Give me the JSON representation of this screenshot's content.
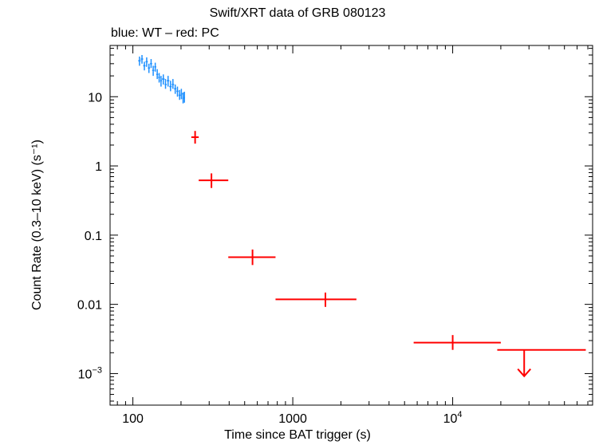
{
  "chart_data": {
    "type": "scatter",
    "title": "Swift/XRT data of GRB 080123",
    "subtitle": "blue: WT – red: PC",
    "xlabel": "Time since BAT trigger (s)",
    "ylabel": "Count Rate (0.3–10 keV) (s⁻¹)",
    "x_scale": "log",
    "y_scale": "log",
    "xlim": [
      72,
      75000
    ],
    "ylim": [
      0.00035,
      55
    ],
    "x_ticks": [
      {
        "value": 100,
        "label": "100",
        "base": "100",
        "sup": ""
      },
      {
        "value": 1000,
        "label": "1000",
        "base": "1000",
        "sup": ""
      },
      {
        "value": 10000,
        "label": "10^4",
        "base": "10",
        "sup": "4"
      }
    ],
    "y_ticks": [
      {
        "value": 10,
        "label": "10",
        "base": "10",
        "sup": ""
      },
      {
        "value": 1,
        "label": "1",
        "base": "1",
        "sup": ""
      },
      {
        "value": 0.1,
        "label": "0.1",
        "base": "0.1",
        "sup": ""
      },
      {
        "value": 0.01,
        "label": "0.01",
        "base": "0.01",
        "sup": ""
      },
      {
        "value": 0.001,
        "label": "10^-3",
        "base": "10",
        "sup": "−3"
      }
    ],
    "series": [
      {
        "name": "WT",
        "color": "#1e90ff",
        "points": [
          {
            "x": 110,
            "x_lo": 108,
            "x_hi": 112,
            "y": 33,
            "y_lo": 28,
            "y_hi": 38
          },
          {
            "x": 114,
            "x_lo": 112,
            "x_hi": 116,
            "y": 35,
            "y_lo": 30,
            "y_hi": 40
          },
          {
            "x": 118,
            "x_lo": 116,
            "x_hi": 120,
            "y": 28,
            "y_lo": 24,
            "y_hi": 32
          },
          {
            "x": 122,
            "x_lo": 120,
            "x_hi": 124,
            "y": 32,
            "y_lo": 27,
            "y_hi": 37
          },
          {
            "x": 126,
            "x_lo": 124,
            "x_hi": 128,
            "y": 26,
            "y_lo": 22,
            "y_hi": 30
          },
          {
            "x": 130,
            "x_lo": 128,
            "x_hi": 132,
            "y": 30,
            "y_lo": 26,
            "y_hi": 35
          },
          {
            "x": 134,
            "x_lo": 132,
            "x_hi": 136,
            "y": 24,
            "y_lo": 20,
            "y_hi": 28
          },
          {
            "x": 138,
            "x_lo": 136,
            "x_hi": 140,
            "y": 27,
            "y_lo": 23,
            "y_hi": 31
          },
          {
            "x": 142,
            "x_lo": 140,
            "x_hi": 144,
            "y": 21,
            "y_lo": 18,
            "y_hi": 25
          },
          {
            "x": 146,
            "x_lo": 144,
            "x_hi": 148,
            "y": 19,
            "y_lo": 16,
            "y_hi": 22
          },
          {
            "x": 150,
            "x_lo": 148,
            "x_hi": 152,
            "y": 17,
            "y_lo": 14,
            "y_hi": 20
          },
          {
            "x": 155,
            "x_lo": 152,
            "x_hi": 158,
            "y": 18,
            "y_lo": 15,
            "y_hi": 21
          },
          {
            "x": 160,
            "x_lo": 158,
            "x_hi": 163,
            "y": 15,
            "y_lo": 13,
            "y_hi": 18
          },
          {
            "x": 166,
            "x_lo": 163,
            "x_hi": 169,
            "y": 17,
            "y_lo": 14,
            "y_hi": 20
          },
          {
            "x": 172,
            "x_lo": 169,
            "x_hi": 175,
            "y": 14,
            "y_lo": 12,
            "y_hi": 17
          },
          {
            "x": 178,
            "x_lo": 175,
            "x_hi": 181,
            "y": 15,
            "y_lo": 13,
            "y_hi": 18
          },
          {
            "x": 184,
            "x_lo": 181,
            "x_hi": 187,
            "y": 13,
            "y_lo": 11,
            "y_hi": 15
          },
          {
            "x": 190,
            "x_lo": 187,
            "x_hi": 193,
            "y": 12,
            "y_lo": 10,
            "y_hi": 14
          },
          {
            "x": 196,
            "x_lo": 193,
            "x_hi": 199,
            "y": 10.5,
            "y_lo": 9,
            "y_hi": 12.5
          },
          {
            "x": 201,
            "x_lo": 199,
            "x_hi": 204,
            "y": 11,
            "y_lo": 9.2,
            "y_hi": 13
          },
          {
            "x": 206,
            "x_lo": 204,
            "x_hi": 208,
            "y": 9.5,
            "y_lo": 8,
            "y_hi": 11.5
          },
          {
            "x": 210,
            "x_lo": 208,
            "x_hi": 212,
            "y": 9.8,
            "y_lo": 8.2,
            "y_hi": 11.8
          }
        ]
      },
      {
        "name": "PC",
        "color": "#ff0000",
        "points": [
          {
            "x": 245,
            "x_lo": 232,
            "x_hi": 258,
            "y": 2.6,
            "y_lo": 2.1,
            "y_hi": 3.2
          },
          {
            "x": 310,
            "x_lo": 258,
            "x_hi": 395,
            "y": 0.62,
            "y_lo": 0.48,
            "y_hi": 0.78
          },
          {
            "x": 560,
            "x_lo": 395,
            "x_hi": 780,
            "y": 0.048,
            "y_lo": 0.037,
            "y_hi": 0.062
          },
          {
            "x": 1600,
            "x_lo": 780,
            "x_hi": 2500,
            "y": 0.0118,
            "y_lo": 0.0092,
            "y_hi": 0.0148
          },
          {
            "x": 10000,
            "x_lo": 5700,
            "x_hi": 20000,
            "y": 0.0028,
            "y_lo": 0.0022,
            "y_hi": 0.0036
          }
        ],
        "upper_limits": [
          {
            "x": 28000,
            "x_lo": 19000,
            "x_hi": 68000,
            "y": 0.0022
          }
        ]
      }
    ]
  }
}
